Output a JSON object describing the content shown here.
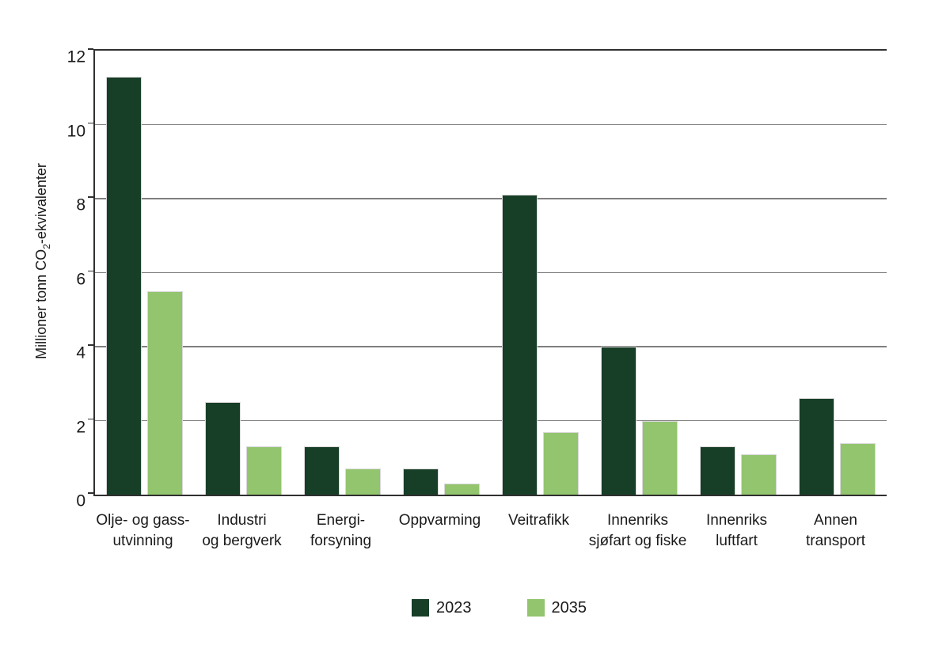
{
  "chart_data": {
    "type": "bar",
    "title": "",
    "ylabel": "Millioner tonn CO₂-ekvivalenter",
    "ylabel_parts": {
      "prefix": "Millioner tonn CO",
      "subscript": "2",
      "suffix": "-ekvivalenter"
    },
    "categories": [
      [
        "Olje- og gass-",
        "utvinning"
      ],
      [
        "Industri",
        "og bergverk"
      ],
      [
        "Energi-",
        "forsyning"
      ],
      [
        "Oppvarming"
      ],
      [
        "Veitrafikk"
      ],
      [
        "Innenriks",
        "sjøfart og fiske"
      ],
      [
        "Innenriks",
        "luftfart"
      ],
      [
        "Annen",
        "transport"
      ]
    ],
    "series": [
      {
        "name": "2023",
        "color": "#173E27",
        "values": [
          11.3,
          2.5,
          1.3,
          0.7,
          8.1,
          4.0,
          1.3,
          2.6
        ]
      },
      {
        "name": "2035",
        "color": "#93C46E",
        "values": [
          5.5,
          1.3,
          0.7,
          0.3,
          1.7,
          2.0,
          1.1,
          1.4
        ]
      }
    ],
    "ylim": [
      0,
      12
    ],
    "yticks": [
      0,
      2,
      4,
      6,
      8,
      10,
      12
    ],
    "grid": true,
    "legend_position": "bottom-center"
  },
  "colors": {
    "series_2023": "#173E27",
    "series_2035": "#93C46E",
    "gridline": "#7F7F7F",
    "axis": "#303030",
    "text": "#1A1A1A",
    "background": "#FFFFFF"
  }
}
